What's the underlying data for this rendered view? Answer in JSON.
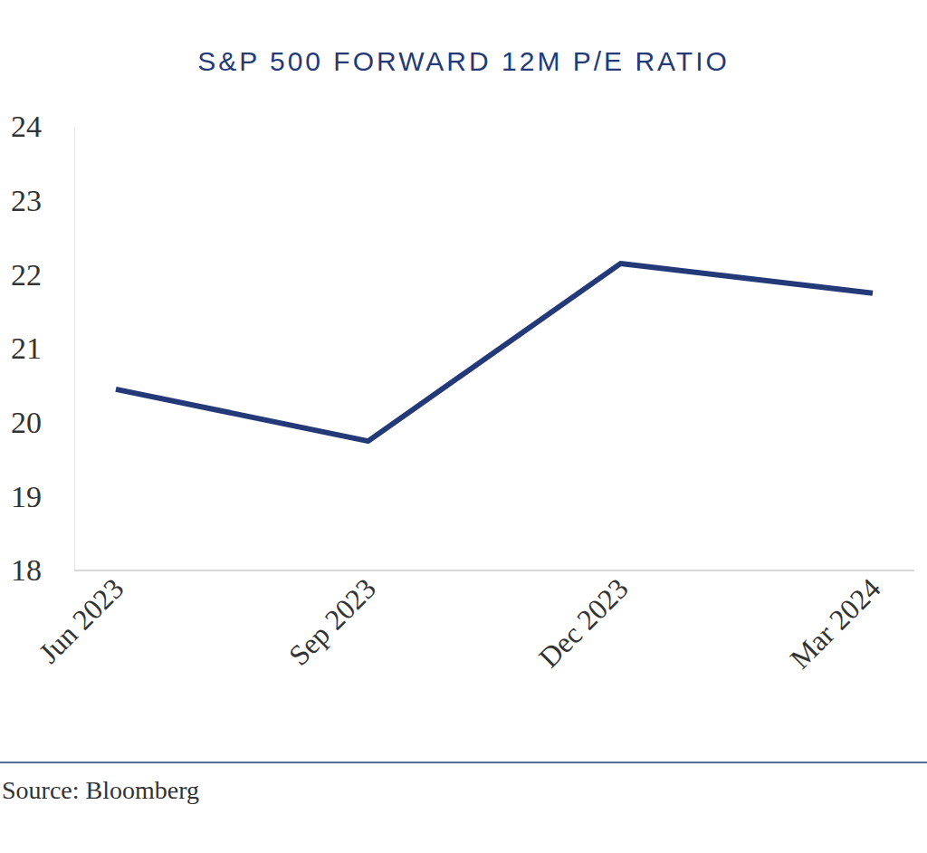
{
  "chart_data": {
    "type": "line",
    "title": "S&P 500 FORWARD 12M P/E RATIO",
    "categories": [
      "Jun 2023",
      "Sep 2023",
      "Dec 2023",
      "Mar 2024"
    ],
    "values": [
      20.45,
      19.75,
      22.15,
      21.75
    ],
    "color": "#243a78",
    "ylim": [
      18,
      24
    ],
    "yticks": [
      18,
      19,
      20,
      21,
      22,
      23,
      24
    ],
    "grid": false,
    "annotations": [
      "Source: Bloomberg"
    ]
  }
}
